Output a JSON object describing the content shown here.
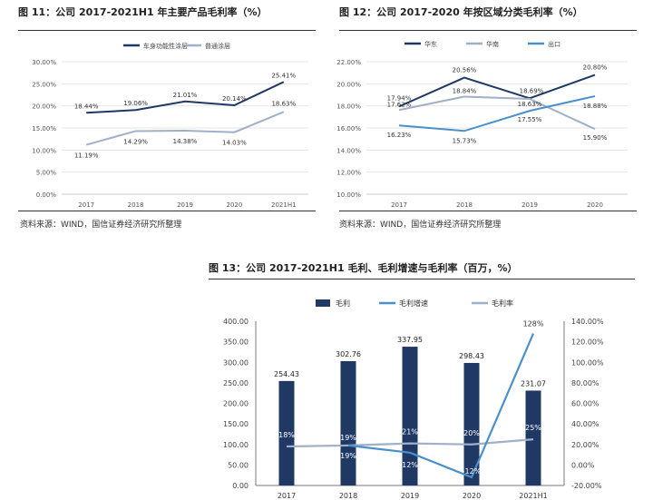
{
  "source_text": "资料来源：WIND，国信证券经济研究所整理",
  "colors": {
    "dark": "#1f3864",
    "light": "#9fb0c8",
    "blue": "#4a90cc",
    "grid": "#e4e4e4",
    "axis": "#777777"
  },
  "charts": [
    {
      "title": "图 11：公司 2017-2021H1 年主要产品毛利率（%）",
      "chart_data": {
        "type": "line",
        "categories": [
          "2017",
          "2018",
          "2019",
          "2020",
          "2021H1"
        ],
        "yticks": [
          "0.00%",
          "5.00%",
          "10.00%",
          "15.00%",
          "20.00%",
          "25.00%",
          "30.00%"
        ],
        "ylim": [
          0,
          30
        ],
        "legend_position": "top",
        "grid": true,
        "series": [
          {
            "name": "车身功能性涂层",
            "color": "#1f3864",
            "values": [
              18.44,
              19.06,
              21.01,
              20.14,
              25.41
            ],
            "labels": [
              "18.44%",
              "19.06%",
              "21.01%",
              "20.14%",
              "25.41%"
            ]
          },
          {
            "name": "普通涂层",
            "color": "#9fb0c8",
            "values": [
              11.19,
              14.29,
              14.38,
              14.03,
              18.63
            ],
            "labels": [
              "11.19%",
              "14.29%",
              "14.38%",
              "14.03%",
              "18.63%"
            ]
          }
        ]
      }
    },
    {
      "title": "图 12：公司 2017-2020 年按区域分类毛利率（%）",
      "chart_data": {
        "type": "line",
        "categories": [
          "2017",
          "2018",
          "2019",
          "2020"
        ],
        "yticks": [
          "10.00%",
          "12.00%",
          "14.00%",
          "16.00%",
          "18.00%",
          "20.00%",
          "22.00%"
        ],
        "ylim": [
          10,
          22
        ],
        "legend_position": "top",
        "grid": true,
        "series": [
          {
            "name": "华东",
            "color": "#1f3864",
            "values": [
              17.94,
              20.56,
              18.69,
              20.8
            ],
            "labels": [
              "17.94%",
              "20.56%",
              "18.69%",
              "20.80%"
            ]
          },
          {
            "name": "华南",
            "color": "#9fb0c8",
            "values": [
              17.62,
              18.84,
              18.63,
              15.9
            ],
            "labels": [
              "17.62%",
              "18.84%",
              "18.63%",
              "15.90%"
            ]
          },
          {
            "name": "出口",
            "color": "#4a90cc",
            "values": [
              16.23,
              15.73,
              17.55,
              18.88
            ],
            "labels": [
              "16.23%",
              "15.73%",
              "17.55%",
              "18.88%"
            ]
          }
        ]
      }
    },
    {
      "title": "图 13：公司 2017-2021H1 毛利、毛利增速与毛利率（百万，%）",
      "chart_data": {
        "type": "bar",
        "categories": [
          "2017",
          "2018",
          "2019",
          "2020",
          "2021H1"
        ],
        "yticks_left": [
          "0.00",
          "50.00",
          "100.00",
          "150.00",
          "200.00",
          "250.00",
          "300.00",
          "350.00",
          "400.00"
        ],
        "ylim_left": [
          0,
          400
        ],
        "yticks_right": [
          "-20.00%",
          "0.00%",
          "20.00%",
          "40.00%",
          "60.00%",
          "80.00%",
          "100.00%",
          "120.00%",
          "140.00%"
        ],
        "ylim_right": [
          -20,
          140
        ],
        "legend_position": "top",
        "grid": false,
        "series": [
          {
            "name": "毛利",
            "type": "bar",
            "axis": "left",
            "color": "#1f3864",
            "values": [
              254.43,
              302.76,
              337.95,
              298.43,
              231.07
            ],
            "labels": [
              "254.43",
              "302.76",
              "337.95",
              "298.43",
              "231.07"
            ]
          },
          {
            "name": "毛利增速",
            "type": "line",
            "axis": "right",
            "color": "#4a90cc",
            "values": [
              null,
              19,
              12,
              -12,
              128
            ],
            "labels": [
              "",
              "19%",
              "12%",
              "-12%",
              "128%"
            ]
          },
          {
            "name": "毛利率",
            "type": "line",
            "axis": "right",
            "color": "#9fb0c8",
            "values": [
              18,
              19,
              21,
              20,
              25
            ],
            "labels": [
              "18%",
              "19%",
              "21%",
              "20%",
              "25%"
            ]
          }
        ]
      }
    }
  ]
}
